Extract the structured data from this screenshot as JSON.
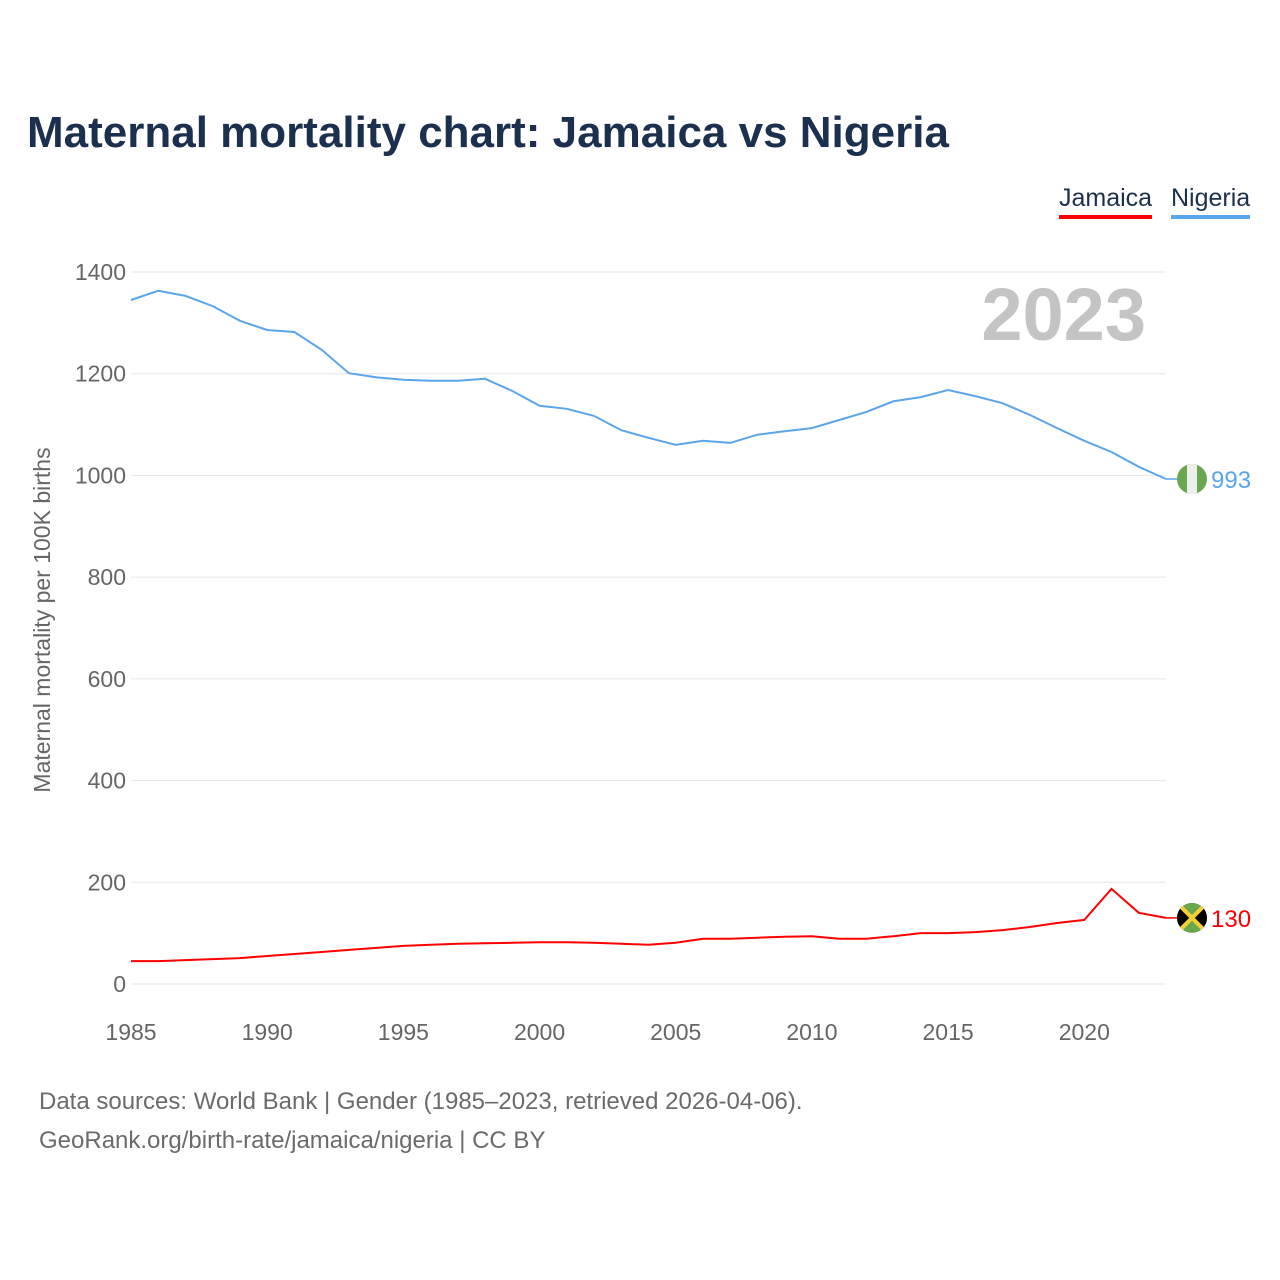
{
  "chart_data": {
    "type": "line",
    "title": "Maternal mortality chart: Jamaica vs Nigeria",
    "xlabel": "",
    "ylabel": "Maternal mortality per 100K births",
    "xlim": [
      1985,
      2023
    ],
    "ylim": [
      0,
      1400
    ],
    "yticks": [
      0,
      200,
      400,
      600,
      800,
      1000,
      1200,
      1400
    ],
    "xticks": [
      1985,
      1990,
      1995,
      2000,
      2005,
      2010,
      2015,
      2020
    ],
    "grid": true,
    "legend_position": "top-right",
    "year_label": "2023",
    "x": [
      1985,
      1986,
      1987,
      1988,
      1989,
      1990,
      1991,
      1992,
      1993,
      1994,
      1995,
      1996,
      1997,
      1998,
      1999,
      2000,
      2001,
      2002,
      2003,
      2004,
      2005,
      2006,
      2007,
      2008,
      2009,
      2010,
      2011,
      2012,
      2013,
      2014,
      2015,
      2016,
      2017,
      2018,
      2019,
      2020,
      2021,
      2022,
      2023
    ],
    "series": [
      {
        "name": "Jamaica",
        "color": "#ff0000",
        "end_label": "130",
        "values": [
          45,
          45,
          47,
          49,
          51,
          55,
          59,
          63,
          67,
          71,
          75,
          77,
          79,
          80,
          81,
          82,
          82,
          81,
          79,
          77,
          81,
          89,
          89,
          91,
          93,
          94,
          89,
          89,
          94,
          100,
          100,
          102,
          106,
          112,
          120,
          126,
          187,
          140,
          130
        ]
      },
      {
        "name": "Nigeria",
        "color": "#5aa5ec",
        "end_label": "993",
        "values": [
          1345,
          1363,
          1353,
          1333,
          1304,
          1286,
          1282,
          1247,
          1201,
          1193,
          1188,
          1186,
          1186,
          1190,
          1166,
          1137,
          1131,
          1117,
          1089,
          1074,
          1060,
          1068,
          1064,
          1080,
          1087,
          1093,
          1109,
          1125,
          1146,
          1154,
          1168,
          1156,
          1142,
          1119,
          1093,
          1068,
          1046,
          1017,
          993
        ]
      }
    ]
  },
  "footer": {
    "line1": "Data sources: World Bank | Gender (1985–2023, retrieved 2026-04-06).",
    "line2": "GeoRank.org/birth-rate/jamaica/nigeria | CC BY"
  }
}
